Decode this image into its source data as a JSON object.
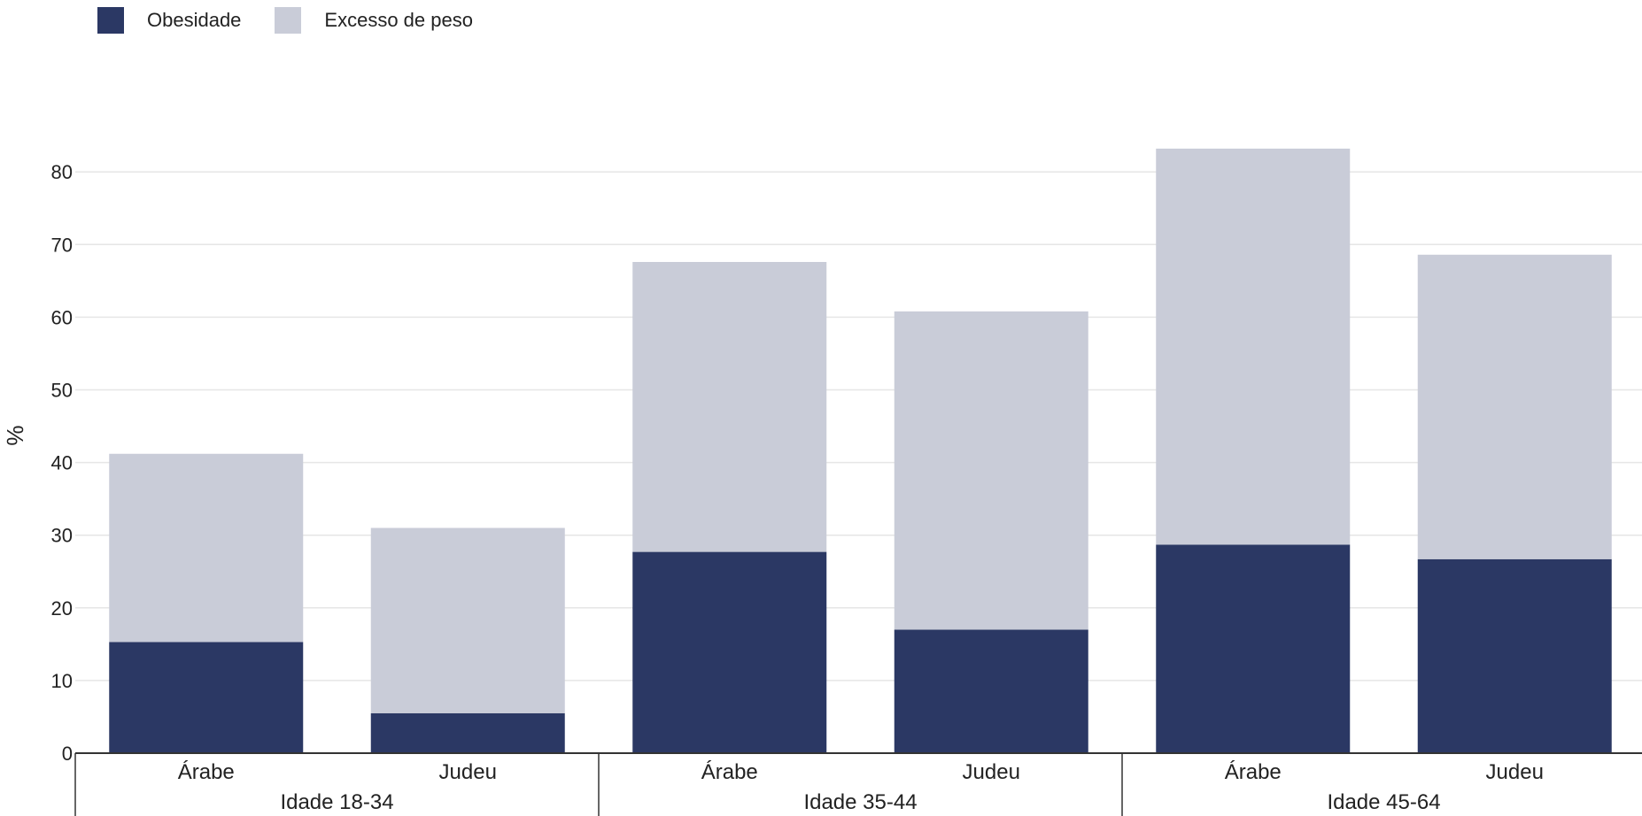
{
  "chart_data": {
    "type": "bar",
    "stacked": true,
    "ylabel": "%",
    "ylim": [
      0,
      85
    ],
    "yticks": [
      0,
      10,
      20,
      30,
      40,
      50,
      60,
      70,
      80
    ],
    "groups": [
      {
        "label": "Idade 18-34",
        "categories": [
          "Árabe",
          "Judeu"
        ]
      },
      {
        "label": "Idade 35-44",
        "categories": [
          "Árabe",
          "Judeu"
        ]
      },
      {
        "label": "Idade 45-64",
        "categories": [
          "Árabe",
          "Judeu"
        ]
      }
    ],
    "categories": [
      "Árabe",
      "Judeu",
      "Árabe",
      "Judeu",
      "Árabe",
      "Judeu"
    ],
    "series": [
      {
        "name": "Obesidade",
        "color": "#2b3864",
        "values": [
          15.3,
          5.5,
          27.7,
          17.0,
          28.7,
          26.7
        ]
      },
      {
        "name": "Excesso de peso",
        "color": "#c9ccd8",
        "values": [
          25.9,
          25.5,
          39.9,
          43.8,
          54.5,
          41.9
        ]
      }
    ],
    "grid": true,
    "legend_position": "top-left"
  }
}
